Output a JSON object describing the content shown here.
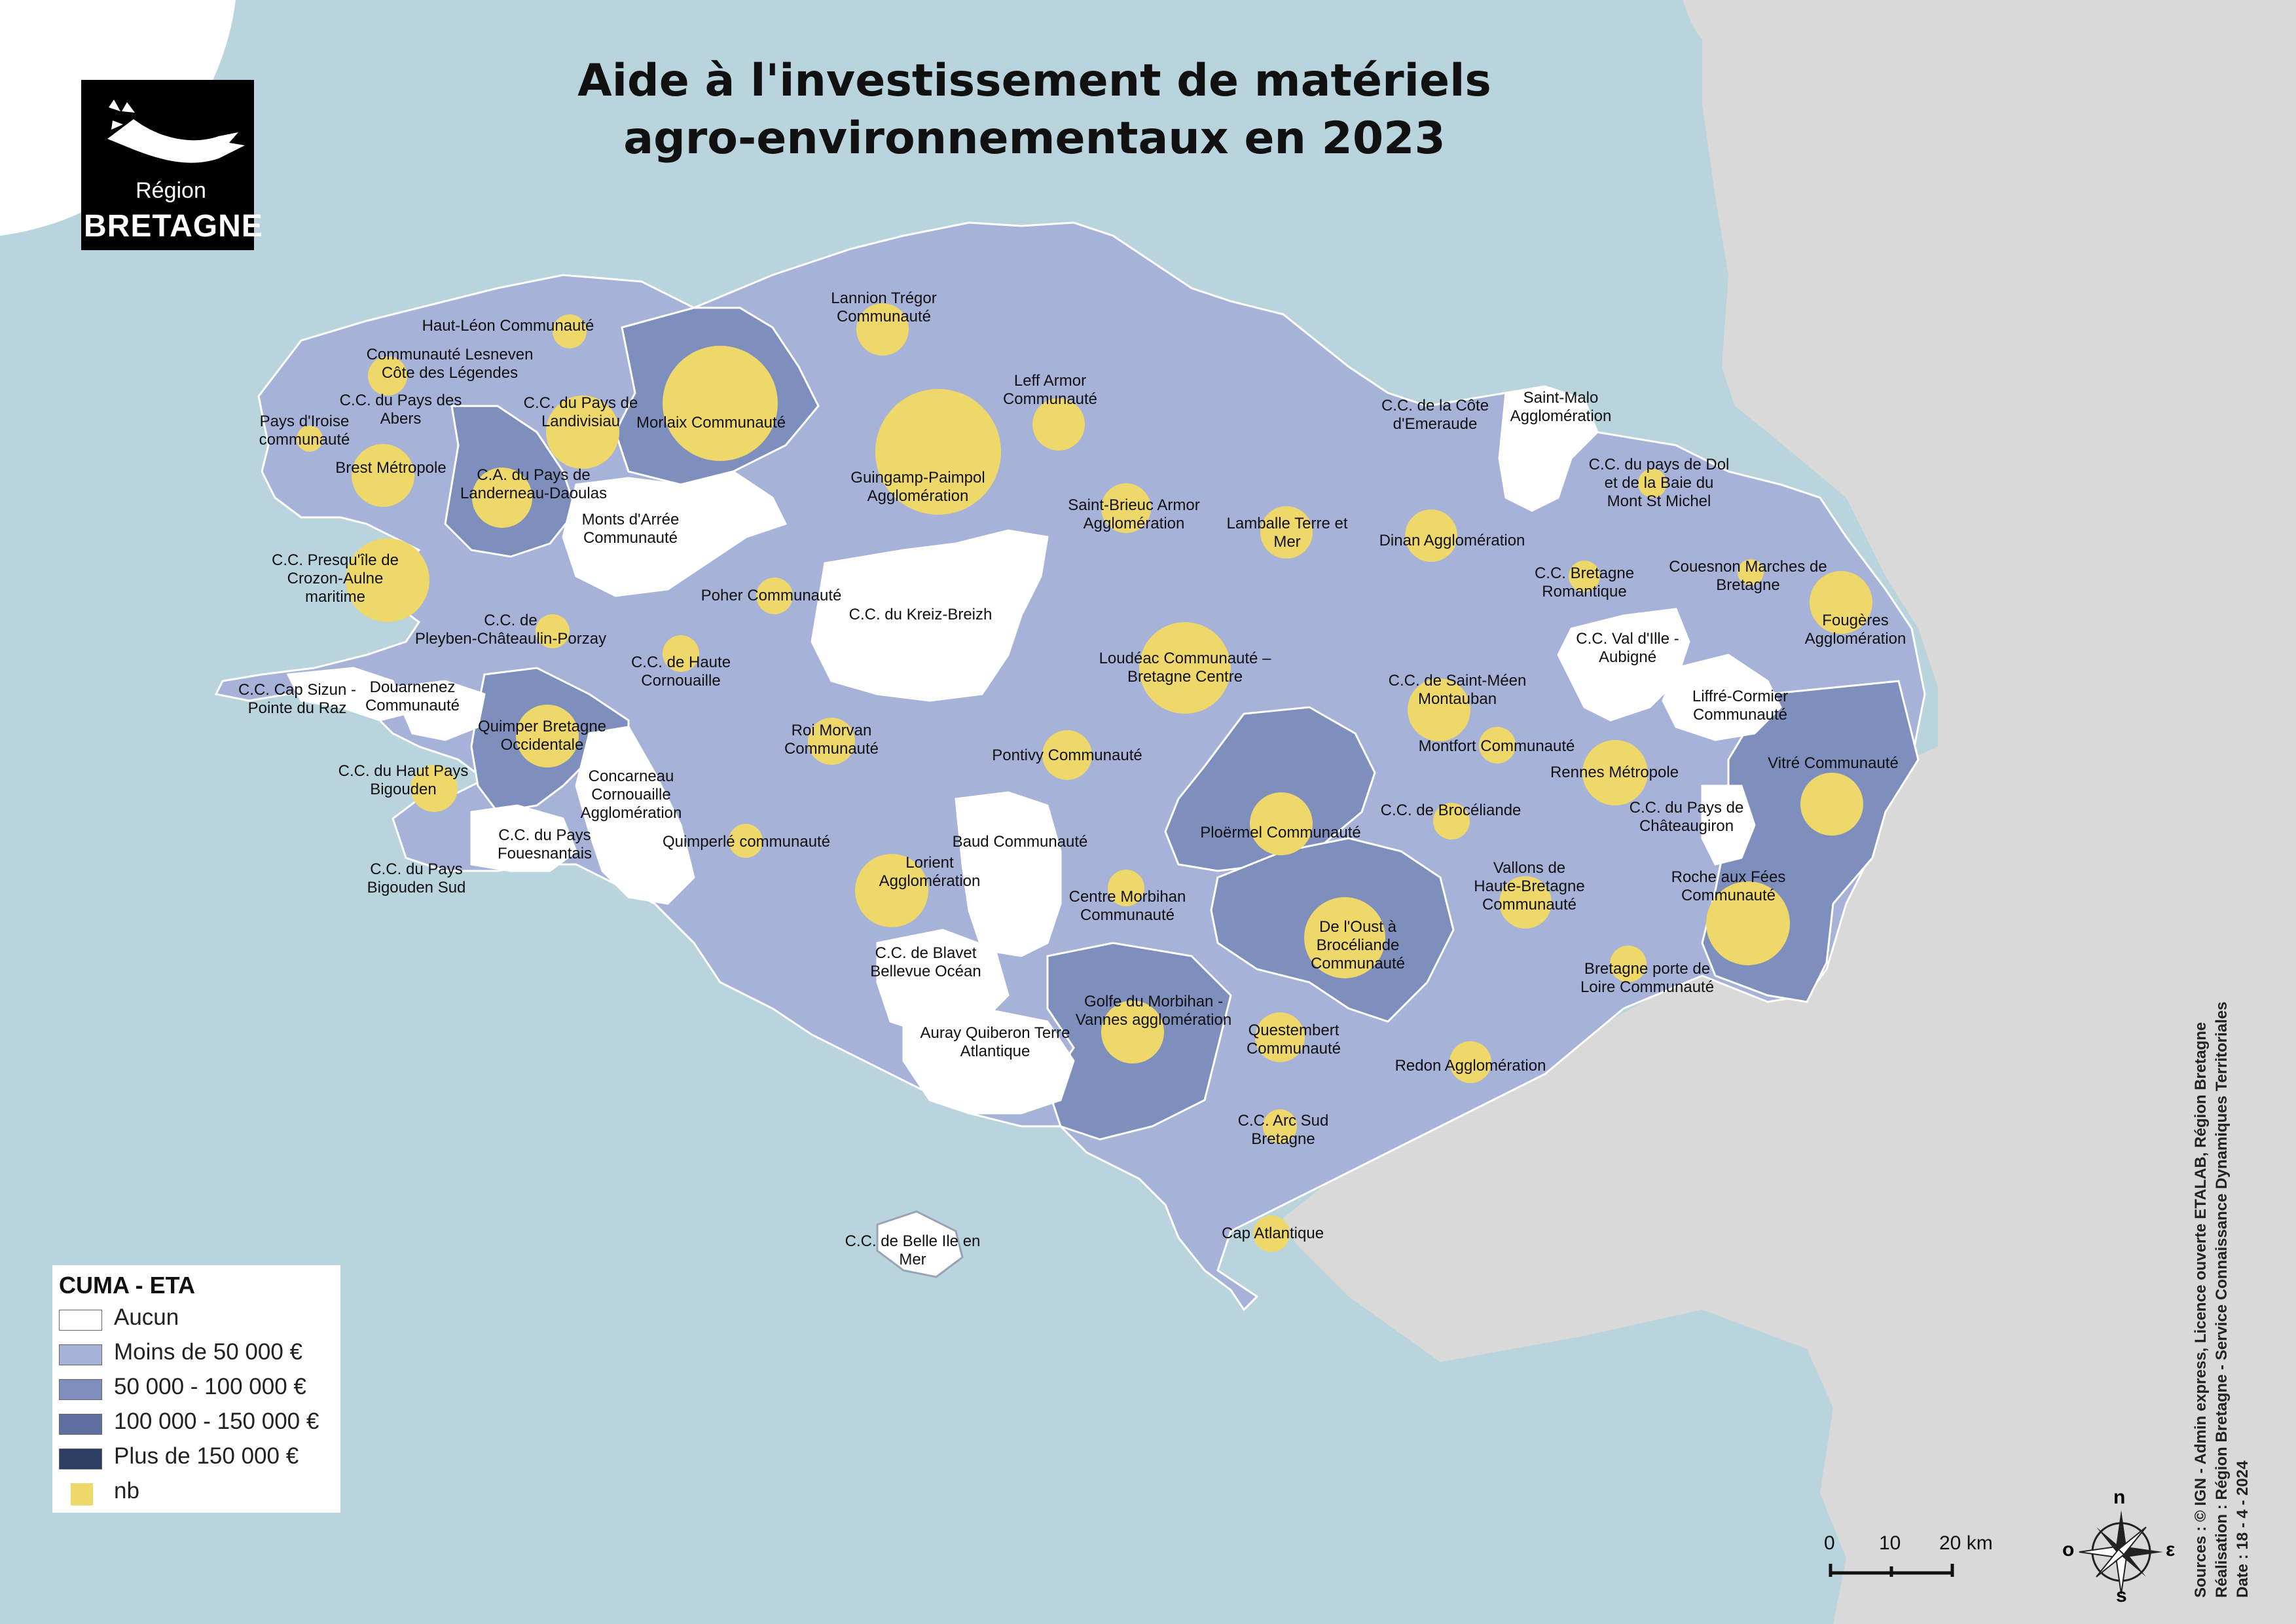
{
  "title_line1": "Aide à l'investissement de matériels",
  "title_line2": "agro-environnementaux en 2023",
  "logo": {
    "line1": "Région",
    "line2": "BRETAGNE"
  },
  "legend": {
    "title": "CUMA - ETA",
    "items": [
      {
        "label": "Aucun",
        "color": "#ffffff"
      },
      {
        "label": "Moins de  50 000 €",
        "color": "#a7b2d9"
      },
      {
        "label": "50 000 - 100 000 €",
        "color": "#7f8fbd"
      },
      {
        "label": "100 000 - 150 000 €",
        "color": "#5f6f9f"
      },
      {
        "label": "Plus de 150 000 €",
        "color": "#2d3e63"
      },
      {
        "label": "nb",
        "color": "#efd86a"
      }
    ]
  },
  "scale": {
    "t0": "0",
    "t10": "10",
    "t20": "20 km"
  },
  "compass": {
    "n": "n",
    "s": "s",
    "e": "ε",
    "o": "o"
  },
  "sources": {
    "line1": "Sources : © IGN - Admin express, Licence ouverte ETALAB, Région Bretagne",
    "line2": "Réalisation : Région Bretagne - Service Connaissance Dynamiques Territoriales",
    "line3": "Date : 18 - 4 - 2024"
  },
  "colors": {
    "sea": "#b9d4dc",
    "land_outside": "#d9d9d9",
    "bubble": "#efd86a"
  },
  "territories": [
    {
      "name": "Haut-Léon Communauté",
      "category": "Moins de  50 000 €"
    },
    {
      "name": "Communauté Lesneven Côte des Légendes",
      "category": "Moins de  50 000 €"
    },
    {
      "name": "C.C. du Pays des Abers",
      "category": "Moins de  50 000 €"
    },
    {
      "name": "Pays d'Iroise communauté",
      "category": "Moins de  50 000 €"
    },
    {
      "name": "C.C. du Pays de Landivisiau",
      "category": "Moins de  50 000 €"
    },
    {
      "name": "Morlaix Communauté",
      "category": "50 000 - 100 000 €"
    },
    {
      "name": "Lannion Trégor Communauté",
      "category": "Moins de  50 000 €"
    },
    {
      "name": "Leff Armor Communauté",
      "category": "Moins de  50 000 €"
    },
    {
      "name": "Guingamp-Paimpol Agglomération",
      "category": "Moins de  50 000 €"
    },
    {
      "name": "Brest Métropole",
      "category": "Moins de  50 000 €"
    },
    {
      "name": "C.A. du Pays de Landerneau-Daoulas",
      "category": "50 000 - 100 000 €"
    },
    {
      "name": "Monts d'Arrée Communauté",
      "category": "Aucun"
    },
    {
      "name": "C.C. Presqu'île de Crozon-Aulne maritime",
      "category": "Moins de  50 000 €"
    },
    {
      "name": "Poher Communauté",
      "category": "Moins de  50 000 €"
    },
    {
      "name": "C.C. du Kreiz-Breizh",
      "category": "Aucun"
    },
    {
      "name": "Saint-Brieuc Armor Agglomération",
      "category": "Moins de  50 000 €"
    },
    {
      "name": "Lamballe Terre et Mer",
      "category": "Moins de  50 000 €"
    },
    {
      "name": "C.C. de la Côte d'Emeraude",
      "category": "Moins de  50 000 €"
    },
    {
      "name": "Saint-Malo Agglomération",
      "category": "Aucun"
    },
    {
      "name": "C.C. du pays de Dol et de la Baie du Mont St Michel",
      "category": "Moins de  50 000 €"
    },
    {
      "name": "Dinan Agglomération",
      "category": "Moins de  50 000 €"
    },
    {
      "name": "C.C. Bretagne Romantique",
      "category": "Moins de  50 000 €"
    },
    {
      "name": "Couesnon Marches de Bretagne",
      "category": "Moins de  50 000 €"
    },
    {
      "name": "Fougères Agglomération",
      "category": "Moins de  50 000 €"
    },
    {
      "name": "C.C. de Pleyben-Châteaulin-Porzay",
      "category": "Moins de  50 000 €"
    },
    {
      "name": "C.C. de Haute Cornouaille",
      "category": "Moins de  50 000 €"
    },
    {
      "name": "Loudéac Communauté – Bretagne Centre",
      "category": "Moins de  50 000 €"
    },
    {
      "name": "C.C. Val d'Ille - Aubigné",
      "category": "Aucun"
    },
    {
      "name": "C.C. Cap Sizun - Pointe du Raz",
      "category": "Aucun"
    },
    {
      "name": "Douarnenez Communauté",
      "category": "Aucun"
    },
    {
      "name": "Quimper Bretagne Occidentale",
      "category": "50 000 - 100 000 €"
    },
    {
      "name": "C.C. de Saint-Méen Montauban",
      "category": "Moins de  50 000 €"
    },
    {
      "name": "Liffré-Cormier Communauté",
      "category": "Aucun"
    },
    {
      "name": "Roi Morvan Communauté",
      "category": "Moins de  50 000 €"
    },
    {
      "name": "Pontivy Communauté",
      "category": "Moins de  50 000 €"
    },
    {
      "name": "Montfort Communauté",
      "category": "Moins de  50 000 €"
    },
    {
      "name": "Rennes Métropole",
      "category": "Moins de  50 000 €"
    },
    {
      "name": "Vitré Communauté",
      "category": "50 000 - 100 000 €"
    },
    {
      "name": "C.C. du Haut Pays Bigouden",
      "category": "Moins de  50 000 €"
    },
    {
      "name": "Concarneau Cornouaille Agglomération",
      "category": "Aucun"
    },
    {
      "name": "C.C. de Brocéliande",
      "category": "Moins de  50 000 €"
    },
    {
      "name": "C.C. du Pays de Châteaugiron",
      "category": "Aucun"
    },
    {
      "name": "C.C. du Pays Fouesnantais",
      "category": "Aucun"
    },
    {
      "name": "Quimperlé communauté",
      "category": "Moins de  50 000 €"
    },
    {
      "name": "Baud Communauté",
      "category": "Aucun"
    },
    {
      "name": "Ploërmel Communauté",
      "category": "50 000 - 100 000 €"
    },
    {
      "name": "Vallons de Haute-Bretagne Communauté",
      "category": "Moins de  50 000 €"
    },
    {
      "name": "C.C. du Pays Bigouden Sud",
      "category": "Aucun"
    },
    {
      "name": "Lorient Agglomération",
      "category": "Moins de  50 000 €"
    },
    {
      "name": "Centre Morbihan Communauté",
      "category": "Moins de  50 000 €"
    },
    {
      "name": "De l'Oust à Brocéliande Communauté",
      "category": "50 000 - 100 000 €"
    },
    {
      "name": "Roche aux Fées Communauté",
      "category": "50 000 - 100 000 €"
    },
    {
      "name": "C.C. de Blavet Bellevue Océan",
      "category": "Aucun"
    },
    {
      "name": "Golfe du Morbihan - Vannes agglomération",
      "category": "50 000 - 100 000 €"
    },
    {
      "name": "Bretagne porte de Loire Communauté",
      "category": "Moins de  50 000 €"
    },
    {
      "name": "Auray Quiberon Terre Atlantique",
      "category": "Aucun"
    },
    {
      "name": "Questembert Communauté",
      "category": "Moins de  50 000 €"
    },
    {
      "name": "Redon Agglomération",
      "category": "Moins de  50 000 €"
    },
    {
      "name": "C.C. Arc Sud Bretagne",
      "category": "Moins de  50 000 €"
    },
    {
      "name": "C.C. de Belle Ile en Mer",
      "category": "Aucun"
    },
    {
      "name": "Cap Atlantique",
      "category": "Moins de  50 000 €"
    }
  ],
  "labels": [
    {
      "id": "haut-leon",
      "lines": [
        "Haut-Léon Communauté"
      ]
    },
    {
      "id": "lesneven",
      "lines": [
        "Communauté Lesneven",
        "Côte des Légendes"
      ]
    },
    {
      "id": "abers",
      "lines": [
        "C.C. du Pays des",
        "Abers"
      ]
    },
    {
      "id": "iroise",
      "lines": [
        "Pays d'Iroise",
        "communauté"
      ]
    },
    {
      "id": "landivisiau",
      "lines": [
        "C.C. du Pays de",
        "Landivisiau"
      ]
    },
    {
      "id": "morlaix",
      "lines": [
        "Morlaix Communauté"
      ]
    },
    {
      "id": "lannion",
      "lines": [
        "Lannion Trégor",
        "Communauté"
      ]
    },
    {
      "id": "leff",
      "lines": [
        "Leff Armor",
        "Communauté"
      ]
    },
    {
      "id": "guingamp",
      "lines": [
        "Guingamp-Paimpol",
        "Agglomération"
      ]
    },
    {
      "id": "brest",
      "lines": [
        "Brest Métropole"
      ]
    },
    {
      "id": "landerneau",
      "lines": [
        "C.A. du Pays de",
        "Landerneau-Daoulas"
      ]
    },
    {
      "id": "arree",
      "lines": [
        "Monts d'Arrée",
        "Communauté"
      ]
    },
    {
      "id": "crozon",
      "lines": [
        "C.C. Presqu'île de",
        "Crozon-Aulne",
        "maritime"
      ]
    },
    {
      "id": "poher",
      "lines": [
        "Poher Communauté"
      ]
    },
    {
      "id": "kreiz",
      "lines": [
        "C.C. du Kreiz-Breizh"
      ]
    },
    {
      "id": "stbrieuc",
      "lines": [
        "Saint-Brieuc Armor",
        "Agglomération"
      ]
    },
    {
      "id": "lamballe",
      "lines": [
        "Lamballe Terre et",
        "Mer"
      ]
    },
    {
      "id": "emeraude",
      "lines": [
        "C.C. de la Côte",
        "d'Emeraude"
      ]
    },
    {
      "id": "stmalo",
      "lines": [
        "Saint-Malo",
        "Agglomération"
      ]
    },
    {
      "id": "dol",
      "lines": [
        "C.C. du pays de Dol",
        "et de la Baie du",
        "Mont St Michel"
      ]
    },
    {
      "id": "dinan",
      "lines": [
        "Dinan Agglomération"
      ]
    },
    {
      "id": "romantique",
      "lines": [
        "C.C. Bretagne",
        "Romantique"
      ]
    },
    {
      "id": "couesnon",
      "lines": [
        "Couesnon Marches de",
        "Bretagne"
      ]
    },
    {
      "id": "fougeres",
      "lines": [
        "Fougères",
        "Agglomération"
      ]
    },
    {
      "id": "pleyben",
      "lines": [
        "C.C. de",
        "Pleyben-Châteaulin-Porzay"
      ]
    },
    {
      "id": "hautecornouaille",
      "lines": [
        "C.C. de Haute",
        "Cornouaille"
      ]
    },
    {
      "id": "loudeac",
      "lines": [
        "Loudéac Communauté –",
        "Bretagne Centre"
      ]
    },
    {
      "id": "valdille",
      "lines": [
        "C.C. Val d'Ille -",
        "Aubigné"
      ]
    },
    {
      "id": "capsizun",
      "lines": [
        "C.C. Cap Sizun -",
        "Pointe du Raz"
      ]
    },
    {
      "id": "douarnenez",
      "lines": [
        "Douarnenez",
        "Communauté"
      ]
    },
    {
      "id": "quimper",
      "lines": [
        "Quimper Bretagne",
        "Occidentale"
      ]
    },
    {
      "id": "stmeen",
      "lines": [
        "C.C. de Saint-Méen",
        "Montauban"
      ]
    },
    {
      "id": "liffre",
      "lines": [
        "Liffré-Cormier",
        "Communauté"
      ]
    },
    {
      "id": "roimorvan",
      "lines": [
        "Roi Morvan",
        "Communauté"
      ]
    },
    {
      "id": "pontivy",
      "lines": [
        "Pontivy Communauté"
      ]
    },
    {
      "id": "montfort",
      "lines": [
        "Montfort Communauté"
      ]
    },
    {
      "id": "rennes",
      "lines": [
        "Rennes Métropole"
      ]
    },
    {
      "id": "vitre",
      "lines": [
        "Vitré Communauté"
      ]
    },
    {
      "id": "hautpaysbigouden",
      "lines": [
        "C.C. du Haut Pays",
        "Bigouden"
      ]
    },
    {
      "id": "concarneau",
      "lines": [
        "Concarneau",
        "Cornouaille",
        "Agglomération"
      ]
    },
    {
      "id": "broceliande",
      "lines": [
        "C.C. de Brocéliande"
      ]
    },
    {
      "id": "chateaugiron",
      "lines": [
        "C.C. du Pays de",
        "Châteaugiron"
      ]
    },
    {
      "id": "fouesnant",
      "lines": [
        "C.C. du Pays",
        "Fouesnantais"
      ]
    },
    {
      "id": "quimperle",
      "lines": [
        "Quimperlé communauté"
      ]
    },
    {
      "id": "baud",
      "lines": [
        "Baud Communauté"
      ]
    },
    {
      "id": "ploermel",
      "lines": [
        "Ploërmel Communauté"
      ]
    },
    {
      "id": "vallons",
      "lines": [
        "Vallons de",
        "Haute-Bretagne",
        "Communauté"
      ]
    },
    {
      "id": "bigoudensud",
      "lines": [
        "C.C. du Pays",
        "Bigouden Sud"
      ]
    },
    {
      "id": "lorient",
      "lines": [
        "Lorient",
        "Agglomération"
      ]
    },
    {
      "id": "centremorbihan",
      "lines": [
        "Centre Morbihan",
        "Communauté"
      ]
    },
    {
      "id": "oust",
      "lines": [
        "De l'Oust à",
        "Brocéliande",
        "Communauté"
      ]
    },
    {
      "id": "rocheauxfees",
      "lines": [
        "Roche aux Fées",
        "Communauté"
      ]
    },
    {
      "id": "blavet",
      "lines": [
        "C.C. de Blavet",
        "Bellevue Océan"
      ]
    },
    {
      "id": "golfe",
      "lines": [
        "Golfe du Morbihan -",
        "Vannes agglomération"
      ]
    },
    {
      "id": "portedeloire",
      "lines": [
        "Bretagne porte de",
        "Loire Communauté"
      ]
    },
    {
      "id": "auray",
      "lines": [
        "Auray Quiberon Terre",
        "Atlantique"
      ]
    },
    {
      "id": "questembert",
      "lines": [
        "Questembert",
        "Communauté"
      ]
    },
    {
      "id": "redon",
      "lines": [
        "Redon Agglomération"
      ]
    },
    {
      "id": "arcsud",
      "lines": [
        "C.C. Arc Sud",
        "Bretagne"
      ]
    },
    {
      "id": "belleile",
      "lines": [
        "C.C. de Belle Ile en",
        "Mer"
      ]
    },
    {
      "id": "capatlantique",
      "lines": [
        "Cap Atlantique"
      ]
    }
  ]
}
